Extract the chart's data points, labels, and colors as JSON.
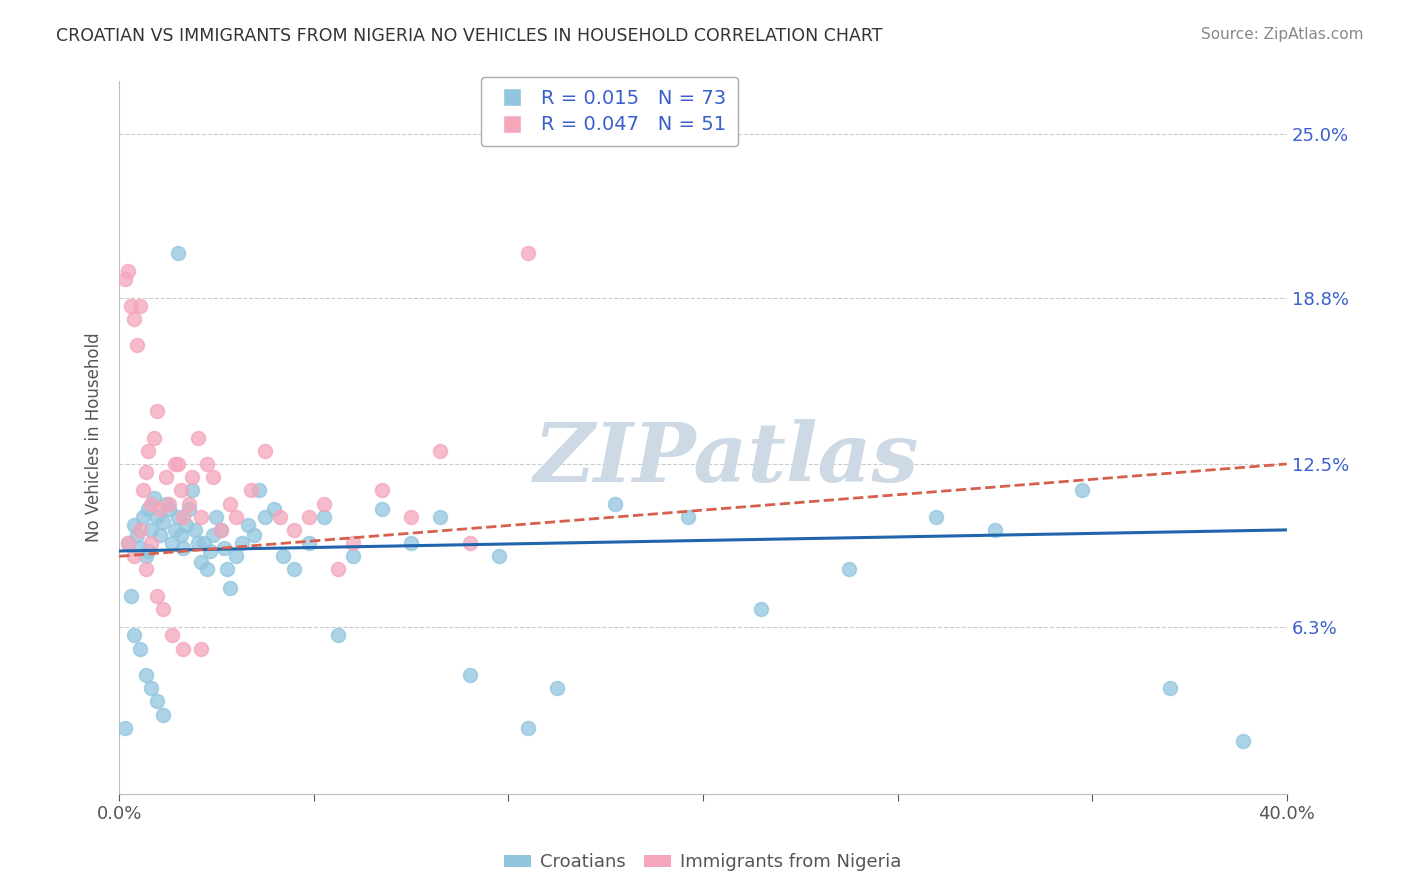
{
  "title": "CROATIAN VS IMMIGRANTS FROM NIGERIA NO VEHICLES IN HOUSEHOLD CORRELATION CHART",
  "source": "Source: ZipAtlas.com",
  "ylabel": "No Vehicles in Household",
  "xlim": [
    0.0,
    40.0
  ],
  "ylim": [
    0.0,
    27.0
  ],
  "x_ticks": [
    0.0,
    6.667,
    13.333,
    20.0,
    26.667,
    33.333,
    40.0
  ],
  "x_tick_labels": [
    "0.0%",
    "",
    "",
    "",
    "",
    "",
    "40.0%"
  ],
  "y_ticks": [
    6.3,
    12.5,
    18.8,
    25.0
  ],
  "y_tick_labels": [
    "6.3%",
    "12.5%",
    "18.8%",
    "25.0%"
  ],
  "croatian_R": 0.015,
  "croatian_N": 73,
  "nigeria_R": 0.047,
  "nigeria_N": 51,
  "blue_color": "#92c5de",
  "pink_color": "#f4a6bb",
  "blue_line_color": "#2166ac",
  "pink_line_color": "#d6604d",
  "legend_label_color": "#3a5fcd",
  "title_color": "#333333",
  "watermark_color": "#cdd9e5",
  "background_color": "#ffffff",
  "croatian_x": [
    0.3,
    0.5,
    0.6,
    0.7,
    0.8,
    0.9,
    1.0,
    1.0,
    1.1,
    1.2,
    1.3,
    1.4,
    1.5,
    1.6,
    1.7,
    1.8,
    1.9,
    2.0,
    2.1,
    2.2,
    2.3,
    2.4,
    2.5,
    2.6,
    2.7,
    2.8,
    2.9,
    3.0,
    3.1,
    3.2,
    3.3,
    3.5,
    3.6,
    3.7,
    3.8,
    4.0,
    4.2,
    4.4,
    4.6,
    4.8,
    5.0,
    5.3,
    5.6,
    6.0,
    6.5,
    7.0,
    7.5,
    8.0,
    9.0,
    10.0,
    11.0,
    12.0,
    13.0,
    14.0,
    15.0,
    17.0,
    19.5,
    22.0,
    25.0,
    28.0,
    30.0,
    33.0,
    36.0,
    38.5,
    0.2,
    0.4,
    0.5,
    0.7,
    0.9,
    1.1,
    1.3,
    1.5,
    2.0
  ],
  "croatian_y": [
    9.5,
    10.2,
    9.8,
    9.3,
    10.5,
    9.0,
    10.8,
    9.2,
    10.0,
    11.2,
    10.5,
    9.8,
    10.3,
    11.0,
    10.8,
    9.5,
    10.0,
    10.5,
    9.8,
    9.3,
    10.2,
    10.8,
    11.5,
    10.0,
    9.5,
    8.8,
    9.5,
    8.5,
    9.2,
    9.8,
    10.5,
    10.0,
    9.3,
    8.5,
    7.8,
    9.0,
    9.5,
    10.2,
    9.8,
    11.5,
    10.5,
    10.8,
    9.0,
    8.5,
    9.5,
    10.5,
    6.0,
    9.0,
    10.8,
    9.5,
    10.5,
    4.5,
    9.0,
    2.5,
    4.0,
    11.0,
    10.5,
    7.0,
    8.5,
    10.5,
    10.0,
    11.5,
    4.0,
    2.0,
    2.5,
    7.5,
    6.0,
    5.5,
    4.5,
    4.0,
    3.5,
    3.0,
    20.5
  ],
  "nigeria_x": [
    0.2,
    0.3,
    0.4,
    0.5,
    0.6,
    0.7,
    0.8,
    0.9,
    1.0,
    1.1,
    1.2,
    1.3,
    1.4,
    1.6,
    1.7,
    1.9,
    2.0,
    2.1,
    2.2,
    2.4,
    2.5,
    2.7,
    2.8,
    3.0,
    3.2,
    3.5,
    3.8,
    4.0,
    4.5,
    5.0,
    5.5,
    6.0,
    6.5,
    7.0,
    7.5,
    8.0,
    9.0,
    10.0,
    11.0,
    12.0,
    14.0,
    0.3,
    0.5,
    0.7,
    0.9,
    1.1,
    1.3,
    1.5,
    1.8,
    2.2,
    2.8
  ],
  "nigeria_y": [
    19.5,
    19.8,
    18.5,
    18.0,
    17.0,
    18.5,
    11.5,
    12.2,
    13.0,
    11.0,
    13.5,
    14.5,
    10.8,
    12.0,
    11.0,
    12.5,
    12.5,
    11.5,
    10.5,
    11.0,
    12.0,
    13.5,
    10.5,
    12.5,
    12.0,
    10.0,
    11.0,
    10.5,
    11.5,
    13.0,
    10.5,
    10.0,
    10.5,
    11.0,
    8.5,
    9.5,
    11.5,
    10.5,
    13.0,
    9.5,
    20.5,
    9.5,
    9.0,
    10.0,
    8.5,
    9.5,
    7.5,
    7.0,
    6.0,
    5.5,
    5.5
  ],
  "blue_trend_start": 9.2,
  "blue_trend_end": 10.0,
  "pink_trend_start": 9.0,
  "pink_trend_end": 12.5
}
